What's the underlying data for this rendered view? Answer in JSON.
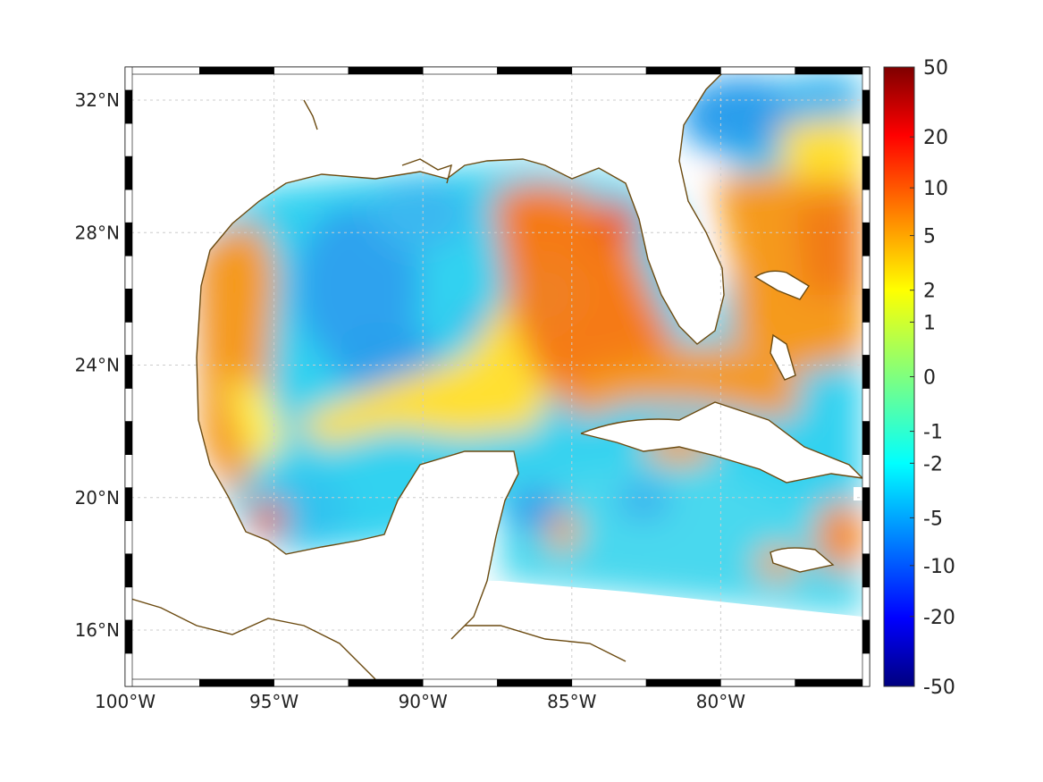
{
  "map": {
    "lon_range": [
      -100,
      -75
    ],
    "lat_range": [
      14.3,
      33
    ],
    "x_ticks": [
      {
        "value": -100,
        "label": "100°W"
      },
      {
        "value": -95,
        "label": "95°W"
      },
      {
        "value": -90,
        "label": "90°W"
      },
      {
        "value": -85,
        "label": "85°W"
      },
      {
        "value": -80,
        "label": "80°W"
      }
    ],
    "y_ticks": [
      {
        "value": 16,
        "label": "16°N"
      },
      {
        "value": 20,
        "label": "20°N"
      },
      {
        "value": 24,
        "label": "24°N"
      },
      {
        "value": 28,
        "label": "28°N"
      },
      {
        "value": 32,
        "label": "32°N"
      }
    ],
    "grid": true,
    "coastline_color": "#6b4a10"
  },
  "colorbar": {
    "colormap": "jet",
    "tick_labels": [
      "50",
      "20",
      "10",
      "5",
      "2",
      "1",
      "0",
      "-1",
      "-2",
      "-5",
      "-10",
      "-20",
      "-50"
    ],
    "scale": "symmetric-log"
  }
}
